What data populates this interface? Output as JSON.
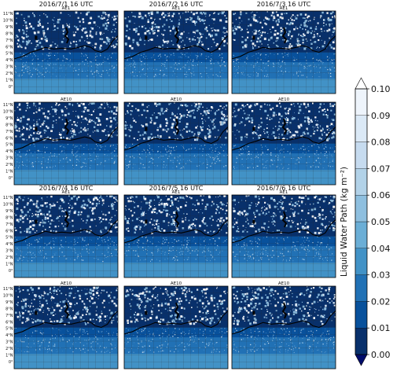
{
  "date_titles": [
    "2016/7/1   16 UTC",
    "2016/7/2   16 UTC",
    "2016/7/3   16 UTC",
    "2016/7/4   16 UTC",
    "2016/7/5   16 UTC",
    "2016/7/6   16 UTC"
  ],
  "experiment_labels": [
    "AE1",
    "AE10"
  ],
  "lat_ticks": [
    "11°N",
    "10°N",
    "9°N",
    "8°N",
    "7°N",
    "6°N",
    "5°N",
    "4°N",
    "3°N",
    "2°N",
    "1°N",
    "0°"
  ],
  "panels": [
    {
      "date": "2016/7/1",
      "exp": "AE1"
    },
    {
      "date": "2016/7/2",
      "exp": "AE1"
    },
    {
      "date": "2016/7/3",
      "exp": "AE1"
    },
    {
      "date": "2016/7/1",
      "exp": "AE10"
    },
    {
      "date": "2016/7/2",
      "exp": "AE10"
    },
    {
      "date": "2016/7/3",
      "exp": "AE10"
    },
    {
      "date": "2016/7/4",
      "exp": "AE1"
    },
    {
      "date": "2016/7/5",
      "exp": "AE1"
    },
    {
      "date": "2016/7/6",
      "exp": "AE1"
    },
    {
      "date": "2016/7/4",
      "exp": "AE10"
    },
    {
      "date": "2016/7/5",
      "exp": "AE10"
    },
    {
      "date": "2016/7/6",
      "exp": "AE10"
    }
  ],
  "colorbar": {
    "label": "Liquid Water Path (kg m⁻²)",
    "ticks": [
      "0.00",
      "0.01",
      "0.02",
      "0.03",
      "0.04",
      "0.05",
      "0.06",
      "0.07",
      "0.08",
      "0.09",
      "0.10"
    ],
    "levels": [
      0.0,
      0.01,
      0.02,
      0.03,
      0.04,
      0.05,
      0.06,
      0.07,
      0.08,
      0.09,
      0.1
    ],
    "colors": [
      "#08306b",
      "#08519c",
      "#2171b5",
      "#4292c6",
      "#6baed6",
      "#8ebfdf",
      "#b2d2e8",
      "#c6dbef",
      "#dbe9f6",
      "#eef4fb",
      "#ffffff"
    ],
    "under_color": "#000c6b",
    "over_color": "#ffffff"
  }
}
